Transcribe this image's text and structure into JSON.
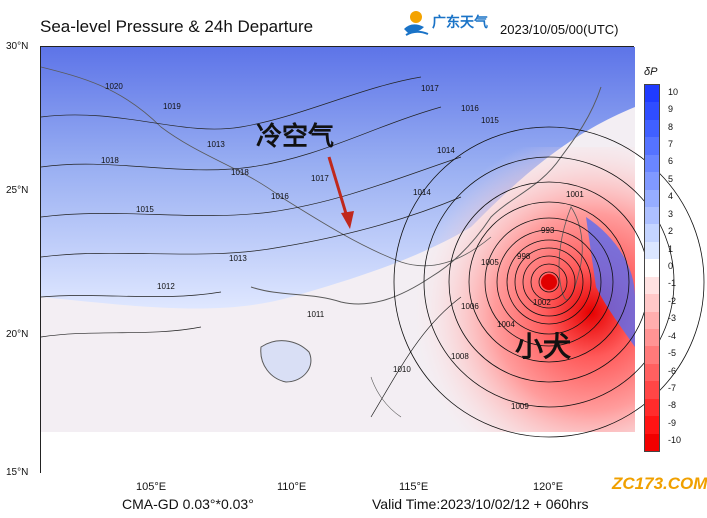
{
  "header": {
    "title": "Sea-level Pressure & 24h Departure",
    "brand_name": "广东天气",
    "datetime": "2023/10/05/00(UTC)"
  },
  "map": {
    "y_ticks": [
      "30°N",
      "25°N",
      "20°N",
      "15°N"
    ],
    "x_ticks": [
      "105°E",
      "110°E",
      "115°E",
      "120°E"
    ],
    "annotations": {
      "cold_air": "冷空气",
      "typhoon": "小犬"
    },
    "contour_labels": [
      "1020",
      "1019",
      "1018",
      "1017",
      "1016",
      "1015",
      "1014",
      "1013",
      "1012",
      "1011",
      "1010",
      "1009",
      "1008",
      "1006",
      "1005",
      "1004",
      "1002",
      "1001",
      "998",
      "993",
      "1013",
      "1014",
      "1015",
      "1016",
      "1017",
      "1018"
    ]
  },
  "colorbar": {
    "title": "δP",
    "levels": [
      "10",
      "9",
      "8",
      "7",
      "6",
      "5",
      "4",
      "3",
      "2",
      "1",
      "0",
      "-1",
      "-2",
      "-3",
      "-4",
      "-5",
      "-6",
      "-7",
      "-8",
      "-9",
      "-10"
    ],
    "colors": [
      "#1f3bff",
      "#2f4dff",
      "#4060ff",
      "#5573ff",
      "#6a86ff",
      "#8099ff",
      "#96adff",
      "#adc0ff",
      "#c4d4ff",
      "#dbe6ff",
      "#ffffff",
      "#ffe2e2",
      "#ffc8c8",
      "#ffaeae",
      "#ff9494",
      "#ff7a7a",
      "#ff6060",
      "#ff4646",
      "#ff2c2c",
      "#ff1414",
      "#f20000"
    ]
  },
  "footer": {
    "left": "CMA-GD 0.03°*0.03°",
    "right": "Valid Time:2023/10/02/12 + 060hrs",
    "watermark": "ZC173.COM"
  },
  "colors": {
    "title_text": "#111111",
    "brand": "#1a73c7",
    "cold_fill": "#6f84ee",
    "warm_fill": "#f07070",
    "land_line": "#666666"
  }
}
